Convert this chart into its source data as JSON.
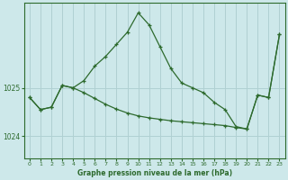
{
  "title": "Graphe pression niveau de la mer (hPa)",
  "background_color": "#cde8ea",
  "grid_color": "#b0d0d2",
  "line_color": "#2d6a2d",
  "marker_color": "#2d6a2d",
  "x_ticks": [
    0,
    1,
    2,
    3,
    4,
    5,
    6,
    7,
    8,
    9,
    10,
    11,
    12,
    13,
    14,
    15,
    16,
    17,
    18,
    19,
    20,
    21,
    22,
    23
  ],
  "y_ticks": [
    1024,
    1025
  ],
  "ylim": [
    1023.55,
    1026.75
  ],
  "xlim": [
    -0.5,
    23.5
  ],
  "series1_x": [
    0,
    1,
    2,
    3,
    4,
    5,
    6,
    7,
    8,
    9,
    10,
    11,
    12,
    13,
    14,
    15,
    16,
    17,
    18,
    19,
    20,
    21,
    22,
    23
  ],
  "series1_y": [
    1024.8,
    1024.55,
    1024.6,
    1025.05,
    1025.0,
    1025.15,
    1025.45,
    1025.65,
    1025.9,
    1026.15,
    1026.55,
    1026.3,
    1025.85,
    1025.4,
    1025.1,
    1025.0,
    1024.9,
    1024.7,
    1024.55,
    1024.2,
    1024.15,
    1024.85,
    1024.8,
    1026.1
  ],
  "series2_x": [
    0,
    1,
    2,
    3,
    4,
    5,
    6,
    7,
    8,
    9,
    10,
    11,
    12,
    13,
    14,
    15,
    16,
    17,
    18,
    19,
    20,
    21,
    22,
    23
  ],
  "series2_y": [
    1024.8,
    1024.55,
    1024.6,
    1025.05,
    1025.0,
    1024.9,
    1024.78,
    1024.66,
    1024.56,
    1024.48,
    1024.42,
    1024.38,
    1024.35,
    1024.32,
    1024.3,
    1024.28,
    1024.26,
    1024.24,
    1024.22,
    1024.18,
    1024.15,
    1024.85,
    1024.8,
    1026.1
  ]
}
